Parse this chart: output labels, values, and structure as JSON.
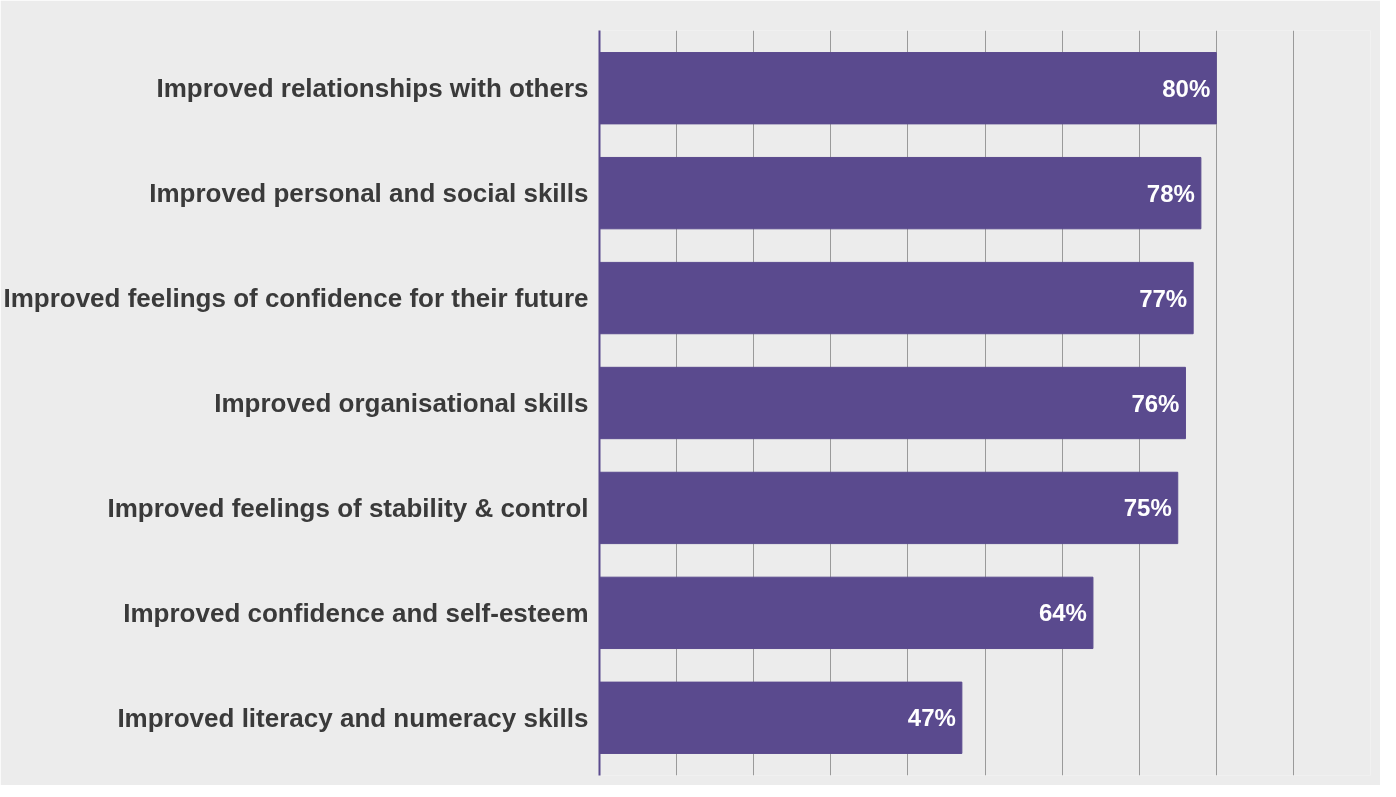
{
  "chart_data": {
    "type": "bar",
    "orientation": "horizontal",
    "categories": [
      "Improved relationships with others",
      "Improved personal and social skills",
      "Improved feelings of confidence for their future",
      "Improved organisational skills",
      "Improved feelings of stability & control",
      "Improved confidence and self-esteem",
      "Improved literacy and numeracy skills"
    ],
    "values": [
      80,
      78,
      77,
      76,
      75,
      64,
      47
    ],
    "color": "#5a4a8e",
    "value_labels": [
      "80%",
      "78%",
      "77%",
      "76%",
      "75%",
      "64%",
      "47%"
    ],
    "xlim": [
      0,
      100
    ],
    "xticks": [
      {
        "value": 0,
        "label": null
      },
      {
        "value": 10,
        "label": null
      },
      {
        "value": 20,
        "label": null
      },
      {
        "value": 30,
        "label": null
      },
      {
        "value": 40,
        "label": null
      },
      {
        "value": 50,
        "label": null
      },
      {
        "value": 60,
        "label": null
      },
      {
        "value": 70,
        "label": null
      },
      {
        "value": 80,
        "label": null
      },
      {
        "value": 90,
        "label": null
      },
      {
        "value": 100,
        "label": null
      }
    ],
    "grid": "x",
    "tick_labels": "y"
  }
}
